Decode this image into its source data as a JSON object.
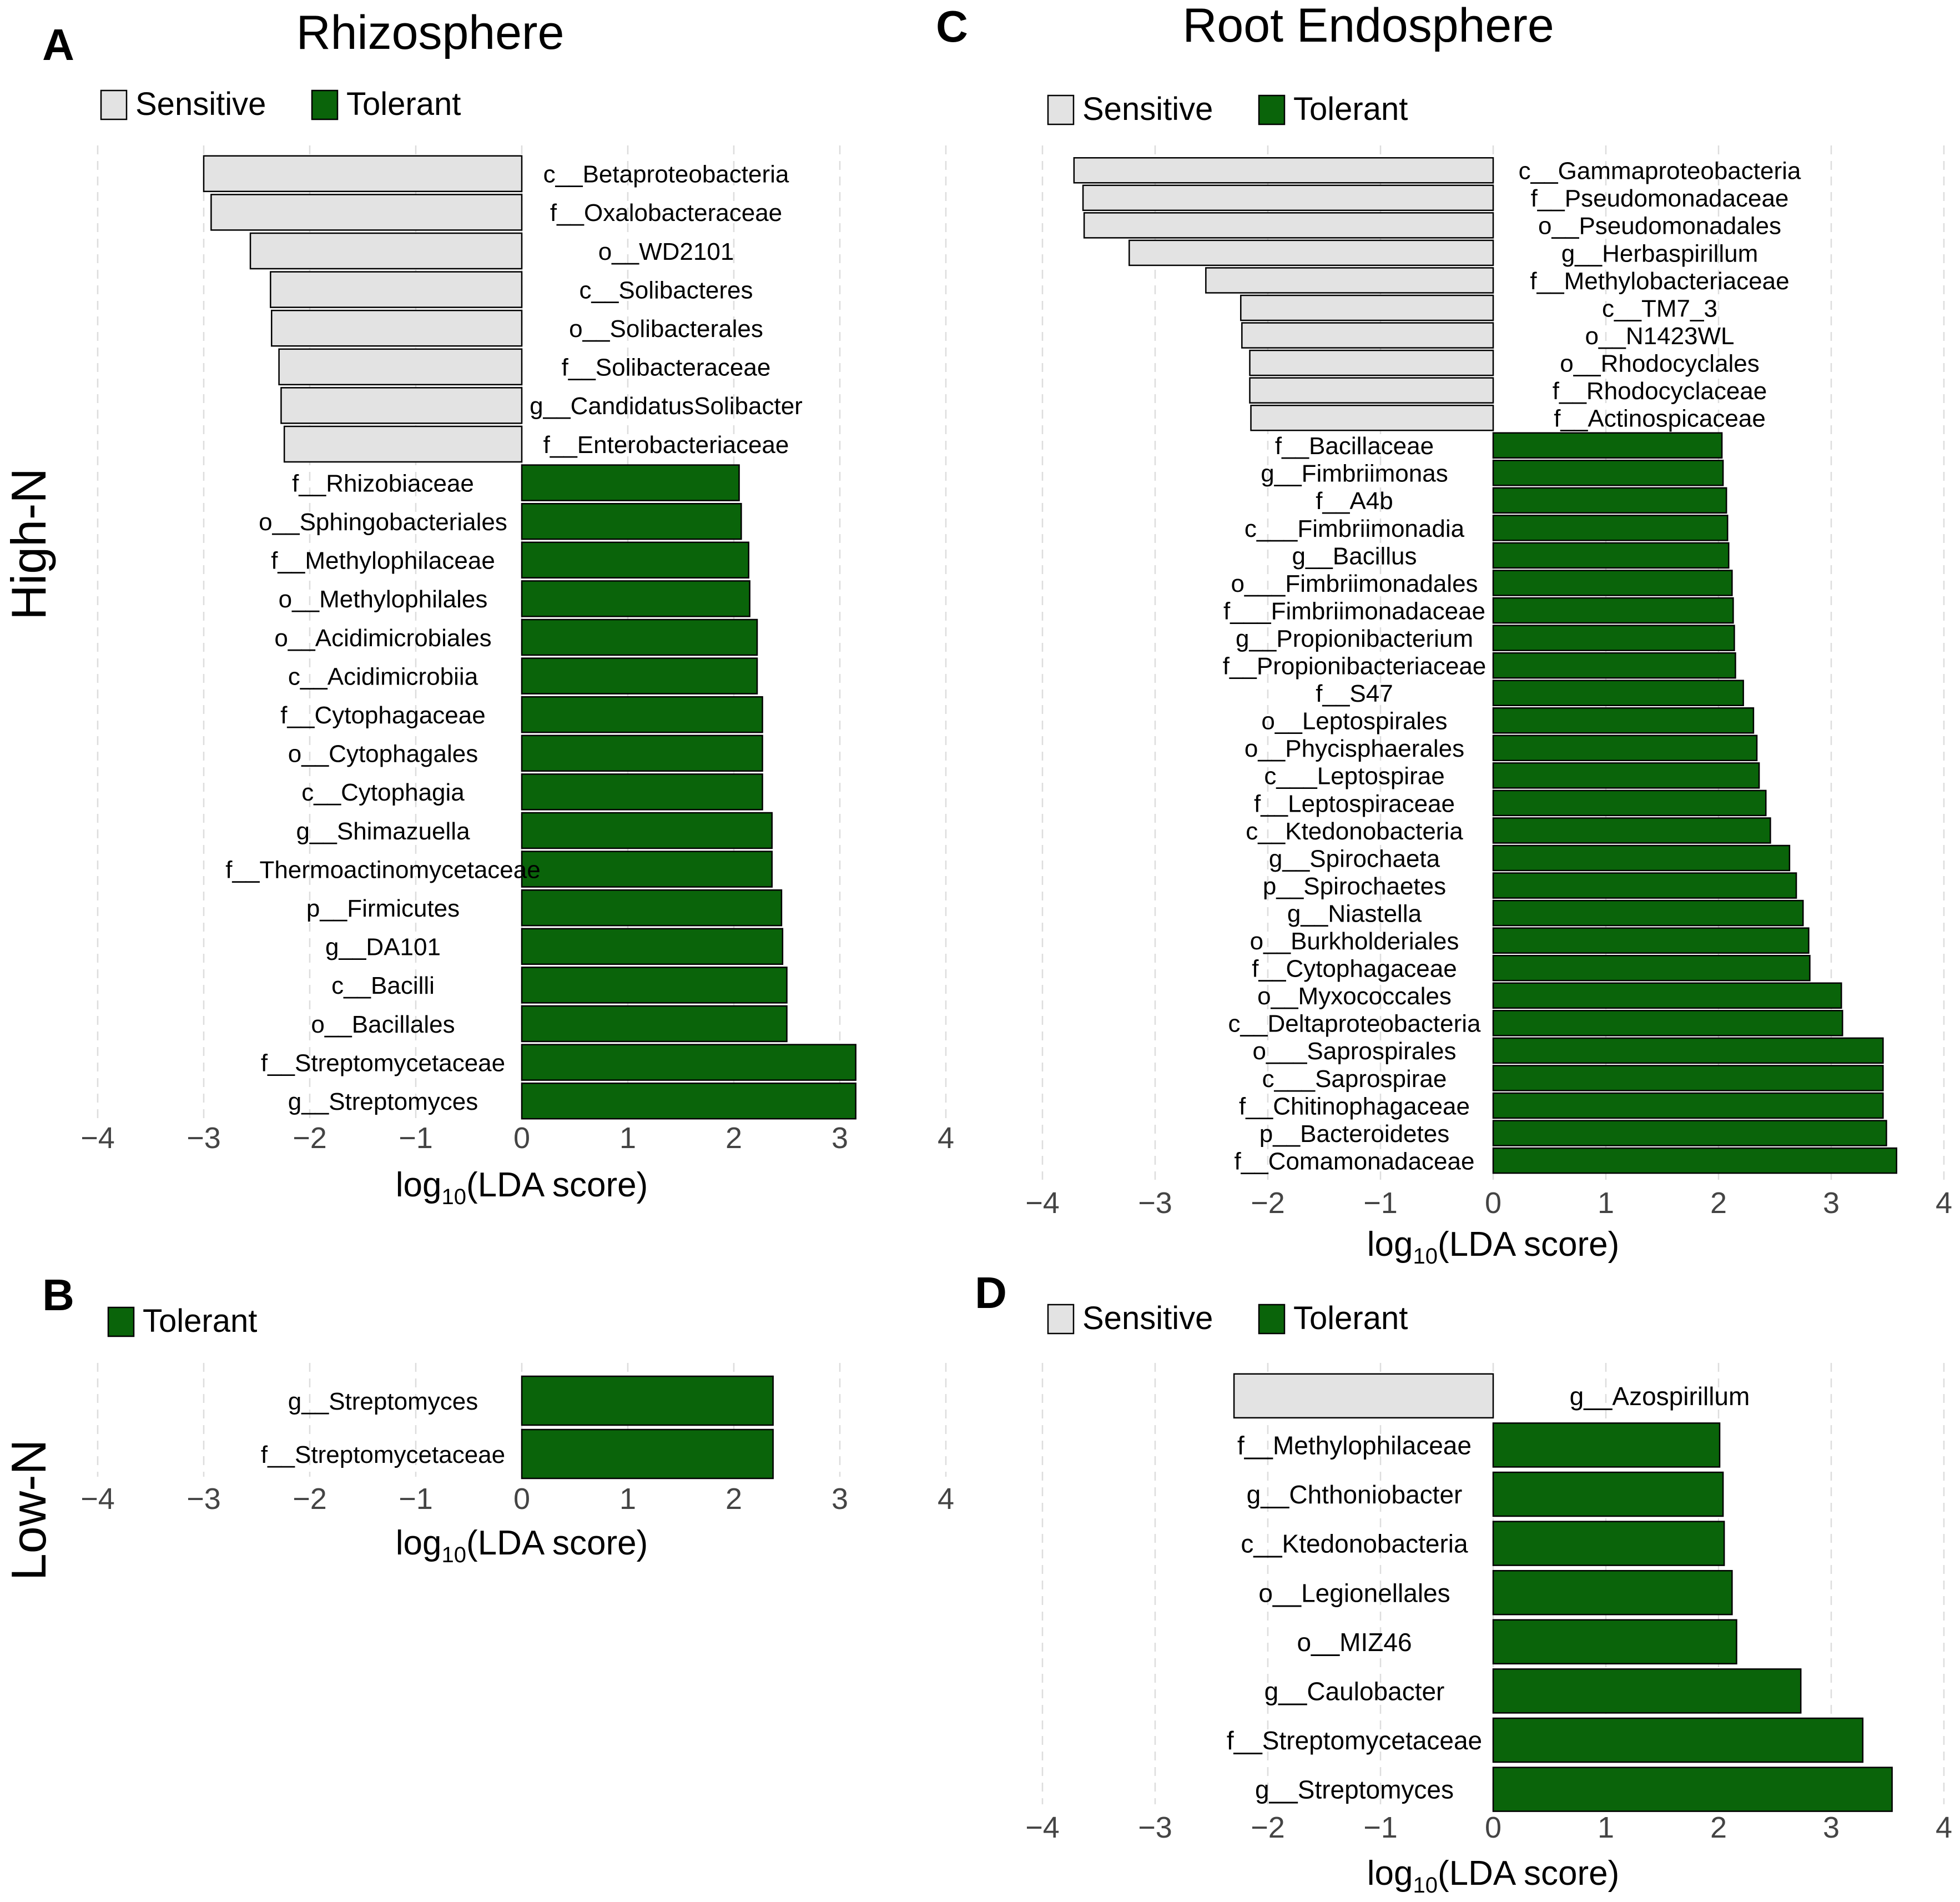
{
  "row_labels": [
    "High-N",
    "Low-N"
  ],
  "colors": {
    "sensitive": "#e3e3e3",
    "tolerant": "#0a640a",
    "grid": "#dddddd",
    "bar_stroke": "#000000"
  },
  "chart_data": [
    {
      "panel": "A",
      "type": "bar",
      "orientation": "horizontal",
      "title": "Rhizosphere",
      "xlabel": "log10(LDA score)",
      "xlim": [
        -4,
        4
      ],
      "xticks": [
        "−4",
        "−3",
        "−2",
        "−1",
        "0",
        "1",
        "2",
        "3",
        "4"
      ],
      "grid": "vertical dashed",
      "legend": [
        "Sensitive",
        "Tolerant"
      ],
      "legend_placement": "top-left",
      "bars": [
        {
          "label": "c__Betaproteobacteria",
          "value": -3.0,
          "group": "Sensitive"
        },
        {
          "label": "f__Oxalobacteraceae",
          "value": -2.93,
          "group": "Sensitive"
        },
        {
          "label": "o__WD2101",
          "value": -2.56,
          "group": "Sensitive"
        },
        {
          "label": "c__Solibacteres",
          "value": -2.37,
          "group": "Sensitive"
        },
        {
          "label": "o__Solibacterales",
          "value": -2.36,
          "group": "Sensitive"
        },
        {
          "label": "f__Solibacteraceae",
          "value": -2.29,
          "group": "Sensitive"
        },
        {
          "label": "g__CandidatusSolibacter",
          "value": -2.27,
          "group": "Sensitive"
        },
        {
          "label": "f__Enterobacteriaceae",
          "value": -2.24,
          "group": "Sensitive"
        },
        {
          "label": "f__Rhizobiaceae",
          "value": 2.05,
          "group": "Tolerant"
        },
        {
          "label": "o__Sphingobacteriales",
          "value": 2.07,
          "group": "Tolerant"
        },
        {
          "label": "f__Methylophilaceae",
          "value": 2.14,
          "group": "Tolerant"
        },
        {
          "label": "o__Methylophilales",
          "value": 2.15,
          "group": "Tolerant"
        },
        {
          "label": "o__Acidimicrobiales",
          "value": 2.22,
          "group": "Tolerant"
        },
        {
          "label": "c__Acidimicrobiia",
          "value": 2.22,
          "group": "Tolerant"
        },
        {
          "label": "f__Cytophagaceae",
          "value": 2.27,
          "group": "Tolerant"
        },
        {
          "label": "o__Cytophagales",
          "value": 2.27,
          "group": "Tolerant"
        },
        {
          "label": "c__Cytophagia",
          "value": 2.27,
          "group": "Tolerant"
        },
        {
          "label": "g__Shimazuella",
          "value": 2.36,
          "group": "Tolerant"
        },
        {
          "label": "f__Thermoactinomycetaceae",
          "value": 2.36,
          "group": "Tolerant"
        },
        {
          "label": "p__Firmicutes",
          "value": 2.45,
          "group": "Tolerant"
        },
        {
          "label": "g__DA101",
          "value": 2.46,
          "group": "Tolerant"
        },
        {
          "label": "c__Bacilli",
          "value": 2.5,
          "group": "Tolerant"
        },
        {
          "label": "o__Bacillales",
          "value": 2.5,
          "group": "Tolerant"
        },
        {
          "label": "f__Streptomycetaceae",
          "value": 3.15,
          "group": "Tolerant"
        },
        {
          "label": "g__Streptomyces",
          "value": 3.15,
          "group": "Tolerant"
        }
      ]
    },
    {
      "panel": "B",
      "type": "bar",
      "orientation": "horizontal",
      "title": "",
      "xlabel": "log10(LDA score)",
      "xlim": [
        -4,
        4
      ],
      "xticks": [
        "−4",
        "−3",
        "−2",
        "−1",
        "0",
        "1",
        "2",
        "3",
        "4"
      ],
      "grid": "vertical dashed",
      "legend": [
        "Tolerant"
      ],
      "legend_placement": "top-left",
      "bars": [
        {
          "label": "g__Streptomyces",
          "value": 2.37,
          "group": "Tolerant"
        },
        {
          "label": "f__Streptomycetaceae",
          "value": 2.37,
          "group": "Tolerant"
        }
      ]
    },
    {
      "panel": "C",
      "type": "bar",
      "orientation": "horizontal",
      "title": "Root Endosphere",
      "xlabel": "log10(LDA score)",
      "xlim": [
        -4,
        4
      ],
      "xticks": [
        "−4",
        "−3",
        "−2",
        "−1",
        "0",
        "1",
        "2",
        "3",
        "4"
      ],
      "grid": "vertical dashed",
      "legend": [
        "Sensitive",
        "Tolerant"
      ],
      "legend_placement": "top-left",
      "bars": [
        {
          "label": "c__Gammaproteobacteria",
          "value": -3.72,
          "group": "Sensitive"
        },
        {
          "label": "f__Pseudomonadaceae",
          "value": -3.64,
          "group": "Sensitive"
        },
        {
          "label": "o__Pseudomonadales",
          "value": -3.63,
          "group": "Sensitive"
        },
        {
          "label": "g__Herbaspirillum",
          "value": -3.23,
          "group": "Sensitive"
        },
        {
          "label": "f__Methylobacteriaceae",
          "value": -2.55,
          "group": "Sensitive"
        },
        {
          "label": "c__TM7_3",
          "value": -2.24,
          "group": "Sensitive"
        },
        {
          "label": "o__N1423WL",
          "value": -2.23,
          "group": "Sensitive"
        },
        {
          "label": "o__Rhodocyclales",
          "value": -2.16,
          "group": "Sensitive"
        },
        {
          "label": "f__Rhodocyclaceae",
          "value": -2.16,
          "group": "Sensitive"
        },
        {
          "label": "f__Actinospicaceae",
          "value": -2.15,
          "group": "Sensitive"
        },
        {
          "label": "f__Bacillaceae",
          "value": 2.03,
          "group": "Tolerant"
        },
        {
          "label": "g__Fimbriimonas",
          "value": 2.04,
          "group": "Tolerant"
        },
        {
          "label": "f__A4b",
          "value": 2.07,
          "group": "Tolerant"
        },
        {
          "label": "c___Fimbriimonadia",
          "value": 2.08,
          "group": "Tolerant"
        },
        {
          "label": "g__Bacillus",
          "value": 2.09,
          "group": "Tolerant"
        },
        {
          "label": "o___Fimbriimonadales",
          "value": 2.12,
          "group": "Tolerant"
        },
        {
          "label": "f___Fimbriimonadaceae",
          "value": 2.13,
          "group": "Tolerant"
        },
        {
          "label": "g__Propionibacterium",
          "value": 2.14,
          "group": "Tolerant"
        },
        {
          "label": "f__Propionibacteriaceae",
          "value": 2.15,
          "group": "Tolerant"
        },
        {
          "label": "f__S47",
          "value": 2.22,
          "group": "Tolerant"
        },
        {
          "label": "o__Leptospirales",
          "value": 2.31,
          "group": "Tolerant"
        },
        {
          "label": "o__Phycisphaerales",
          "value": 2.34,
          "group": "Tolerant"
        },
        {
          "label": "c___Leptospirae",
          "value": 2.36,
          "group": "Tolerant"
        },
        {
          "label": "f__Leptospiraceae",
          "value": 2.42,
          "group": "Tolerant"
        },
        {
          "label": "c__Ktedonobacteria",
          "value": 2.46,
          "group": "Tolerant"
        },
        {
          "label": "g__Spirochaeta",
          "value": 2.63,
          "group": "Tolerant"
        },
        {
          "label": "p__Spirochaetes",
          "value": 2.69,
          "group": "Tolerant"
        },
        {
          "label": "g__Niastella",
          "value": 2.75,
          "group": "Tolerant"
        },
        {
          "label": "o__Burkholderiales",
          "value": 2.8,
          "group": "Tolerant"
        },
        {
          "label": "f__Cytophagaceae",
          "value": 2.81,
          "group": "Tolerant"
        },
        {
          "label": "o__Myxococcales",
          "value": 3.09,
          "group": "Tolerant"
        },
        {
          "label": "c__Deltaproteobacteria",
          "value": 3.1,
          "group": "Tolerant"
        },
        {
          "label": "o___Saprospirales",
          "value": 3.46,
          "group": "Tolerant"
        },
        {
          "label": "c___Saprospirae",
          "value": 3.46,
          "group": "Tolerant"
        },
        {
          "label": "f__Chitinophagaceae",
          "value": 3.46,
          "group": "Tolerant"
        },
        {
          "label": "p__Bacteroidetes",
          "value": 3.49,
          "group": "Tolerant"
        },
        {
          "label": "f__Comamonadaceae",
          "value": 3.58,
          "group": "Tolerant"
        }
      ]
    },
    {
      "panel": "D",
      "type": "bar",
      "orientation": "horizontal",
      "title": "",
      "xlabel": "log10(LDA score)",
      "xlim": [
        -4,
        4
      ],
      "xticks": [
        "−4",
        "−3",
        "−2",
        "−1",
        "0",
        "1",
        "2",
        "3",
        "4"
      ],
      "grid": "vertical dashed",
      "legend": [
        "Sensitive",
        "Tolerant"
      ],
      "legend_placement": "top-left",
      "bars": [
        {
          "label": "g__Azospirillum",
          "value": -2.3,
          "group": "Sensitive"
        },
        {
          "label": "f__Methylophilaceae",
          "value": 2.01,
          "group": "Tolerant"
        },
        {
          "label": "g__Chthoniobacter",
          "value": 2.04,
          "group": "Tolerant"
        },
        {
          "label": "c__Ktedonobacteria",
          "value": 2.05,
          "group": "Tolerant"
        },
        {
          "label": "o__Legionellales",
          "value": 2.12,
          "group": "Tolerant"
        },
        {
          "label": "o__MIZ46",
          "value": 2.16,
          "group": "Tolerant"
        },
        {
          "label": "g__Caulobacter",
          "value": 2.73,
          "group": "Tolerant"
        },
        {
          "label": "f__Streptomycetaceae",
          "value": 3.28,
          "group": "Tolerant"
        },
        {
          "label": "g__Streptomyces",
          "value": 3.54,
          "group": "Tolerant"
        }
      ]
    }
  ]
}
